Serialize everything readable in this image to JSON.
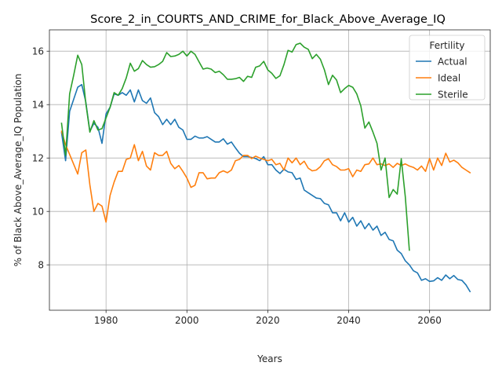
{
  "chart_data": {
    "type": "line",
    "title": "Score_2_in_COURTS_AND_CRIME_for_Black_Above_Average_IQ",
    "xlabel": "Years",
    "ylabel": "% of Black Above_Average_IQ Population",
    "xlim": [
      1966,
      2075
    ],
    "ylim": [
      6.3,
      16.8
    ],
    "xticks": [
      1980,
      2000,
      2020,
      2040,
      2060
    ],
    "yticks": [
      8,
      10,
      12,
      14,
      16
    ],
    "grid": true,
    "legend": {
      "title": "Fertility",
      "placement": "top-right"
    },
    "series": [
      {
        "name": "Actual",
        "color": "#1f77b4",
        "x": [
          1969,
          1970,
          1971,
          1972,
          1973,
          1974,
          1975,
          1976,
          1977,
          1978,
          1979,
          1980,
          1981,
          1982,
          1983,
          1984,
          1985,
          1986,
          1987,
          1988,
          1989,
          1990,
          1991,
          1992,
          1993,
          1994,
          1995,
          1996,
          1997,
          1998,
          1999,
          2000,
          2001,
          2002,
          2003,
          2004,
          2005,
          2006,
          2007,
          2008,
          2009,
          2010,
          2011,
          2012,
          2013,
          2014,
          2015,
          2016,
          2017,
          2018,
          2019,
          2020,
          2021,
          2022,
          2023,
          2024,
          2025,
          2026,
          2027,
          2028,
          2029,
          2030,
          2031,
          2032,
          2033,
          2034,
          2035,
          2036,
          2037,
          2038,
          2039,
          2040,
          2041,
          2042,
          2043,
          2044,
          2045,
          2046,
          2047,
          2048,
          2049,
          2050,
          2051,
          2052,
          2053,
          2054,
          2055,
          2056,
          2057,
          2058,
          2059,
          2060,
          2061,
          2062,
          2063,
          2064,
          2065,
          2066,
          2067,
          2068,
          2069,
          2070
        ],
        "values": [
          12.95,
          11.9,
          13.75,
          14.2,
          14.65,
          14.75,
          14.1,
          13.0,
          13.3,
          13.15,
          12.55,
          13.65,
          13.9,
          14.4,
          14.35,
          14.45,
          14.35,
          14.55,
          14.1,
          14.55,
          14.15,
          14.05,
          14.25,
          13.7,
          13.55,
          13.25,
          13.45,
          13.25,
          13.45,
          13.15,
          13.05,
          12.7,
          12.7,
          12.82,
          12.75,
          12.75,
          12.8,
          12.7,
          12.6,
          12.6,
          12.72,
          12.52,
          12.6,
          12.38,
          12.18,
          12.05,
          12.05,
          12.02,
          11.98,
          11.9,
          12.05,
          11.75,
          11.75,
          11.55,
          11.42,
          11.58,
          11.48,
          11.45,
          11.2,
          11.25,
          10.8,
          10.7,
          10.6,
          10.5,
          10.48,
          10.3,
          10.25,
          9.95,
          9.95,
          9.65,
          9.95,
          9.6,
          9.78,
          9.45,
          9.65,
          9.35,
          9.55,
          9.3,
          9.45,
          9.1,
          9.22,
          8.95,
          8.9,
          8.55,
          8.42,
          8.15,
          8.0,
          7.78,
          7.7,
          7.42,
          7.48,
          7.38,
          7.4,
          7.52,
          7.42,
          7.62,
          7.48,
          7.6,
          7.45,
          7.42,
          7.25,
          7.0
        ]
      },
      {
        "name": "Ideal",
        "color": "#ff7f0e",
        "x": [
          1969,
          1970,
          1973,
          1974,
          1975,
          1976,
          1977,
          1978,
          1979,
          1980,
          1981,
          1982,
          1983,
          1984,
          1985,
          1986,
          1987,
          1988,
          1989,
          1990,
          1991,
          1992,
          1993,
          1994,
          1995,
          1996,
          1997,
          1998,
          1999,
          2000,
          2001,
          2002,
          2003,
          2004,
          2005,
          2006,
          2007,
          2008,
          2009,
          2010,
          2011,
          2012,
          2013,
          2014,
          2015,
          2016,
          2017,
          2018,
          2019,
          2020,
          2021,
          2022,
          2023,
          2024,
          2025,
          2026,
          2027,
          2028,
          2029,
          2030,
          2031,
          2032,
          2033,
          2034,
          2035,
          2036,
          2037,
          2038,
          2039,
          2040,
          2041,
          2042,
          2043,
          2044,
          2045,
          2046,
          2047,
          2048,
          2049,
          2050,
          2051,
          2052,
          2053,
          2054,
          2055,
          2056,
          2057,
          2058,
          2059,
          2060,
          2061,
          2062,
          2063,
          2064,
          2065,
          2066,
          2067,
          2068,
          2069,
          2070
        ],
        "values": [
          13.0,
          12.5,
          11.4,
          12.2,
          12.3,
          11.0,
          10.0,
          10.3,
          10.2,
          9.6,
          10.6,
          11.1,
          11.5,
          11.5,
          11.95,
          12.0,
          12.5,
          11.9,
          12.25,
          11.7,
          11.55,
          12.2,
          12.1,
          12.1,
          12.25,
          11.8,
          11.6,
          11.72,
          11.5,
          11.25,
          10.9,
          10.98,
          11.45,
          11.45,
          11.22,
          11.25,
          11.25,
          11.45,
          11.52,
          11.45,
          11.55,
          11.9,
          11.95,
          12.1,
          12.1,
          11.98,
          12.07,
          12.0,
          11.95,
          11.9,
          11.95,
          11.75,
          11.8,
          11.55,
          12.0,
          11.82,
          12.0,
          11.75,
          11.88,
          11.62,
          11.52,
          11.55,
          11.68,
          11.9,
          11.97,
          11.75,
          11.68,
          11.55,
          11.55,
          11.6,
          11.3,
          11.55,
          11.5,
          11.75,
          11.78,
          12.0,
          11.75,
          11.78,
          11.72,
          11.78,
          11.65,
          11.8,
          11.72,
          11.78,
          11.7,
          11.65,
          11.55,
          11.7,
          11.5,
          11.98,
          11.55,
          12.0,
          11.72,
          12.18,
          11.85,
          11.92,
          11.82,
          11.65,
          11.55,
          11.45
        ]
      },
      {
        "name": "Sterile",
        "color": "#2ca02c",
        "x": [
          1969,
          1970,
          1971,
          1972,
          1973,
          1974,
          1975,
          1976,
          1977,
          1978,
          1979,
          1980,
          1981,
          1982,
          1983,
          1984,
          1985,
          1986,
          1987,
          1988,
          1989,
          1990,
          1991,
          1992,
          1993,
          1994,
          1995,
          1996,
          1997,
          1998,
          1999,
          2000,
          2001,
          2002,
          2003,
          2004,
          2005,
          2006,
          2007,
          2008,
          2009,
          2010,
          2011,
          2012,
          2013,
          2014,
          2015,
          2016,
          2017,
          2018,
          2019,
          2020,
          2021,
          2022,
          2023,
          2024,
          2025,
          2026,
          2027,
          2028,
          2029,
          2030,
          2031,
          2032,
          2033,
          2034,
          2035,
          2036,
          2037,
          2038,
          2039,
          2040,
          2041,
          2042,
          2043,
          2044,
          2045,
          2046,
          2047,
          2048,
          2049,
          2050,
          2051,
          2052,
          2053,
          2054,
          2055
        ],
        "values": [
          13.3,
          12.1,
          14.4,
          15.1,
          15.85,
          15.5,
          14.05,
          12.97,
          13.4,
          13.05,
          13.1,
          13.5,
          13.9,
          14.45,
          14.35,
          14.6,
          15.0,
          15.55,
          15.25,
          15.35,
          15.65,
          15.5,
          15.4,
          15.42,
          15.5,
          15.62,
          15.95,
          15.8,
          15.82,
          15.88,
          16.0,
          15.82,
          16.0,
          15.88,
          15.6,
          15.33,
          15.37,
          15.33,
          15.2,
          15.25,
          15.12,
          14.95,
          14.95,
          14.97,
          15.02,
          14.87,
          15.06,
          15.02,
          15.4,
          15.45,
          15.62,
          15.3,
          15.17,
          14.98,
          15.08,
          15.5,
          16.03,
          15.97,
          16.25,
          16.3,
          16.15,
          16.07,
          15.72,
          15.88,
          15.7,
          15.3,
          14.75,
          15.1,
          14.92,
          14.45,
          14.6,
          14.72,
          14.65,
          14.4,
          13.95,
          13.12,
          13.35,
          12.97,
          12.55,
          11.55,
          12.0,
          10.52,
          10.82,
          10.65,
          11.97,
          10.55,
          8.55
        ]
      }
    ]
  }
}
